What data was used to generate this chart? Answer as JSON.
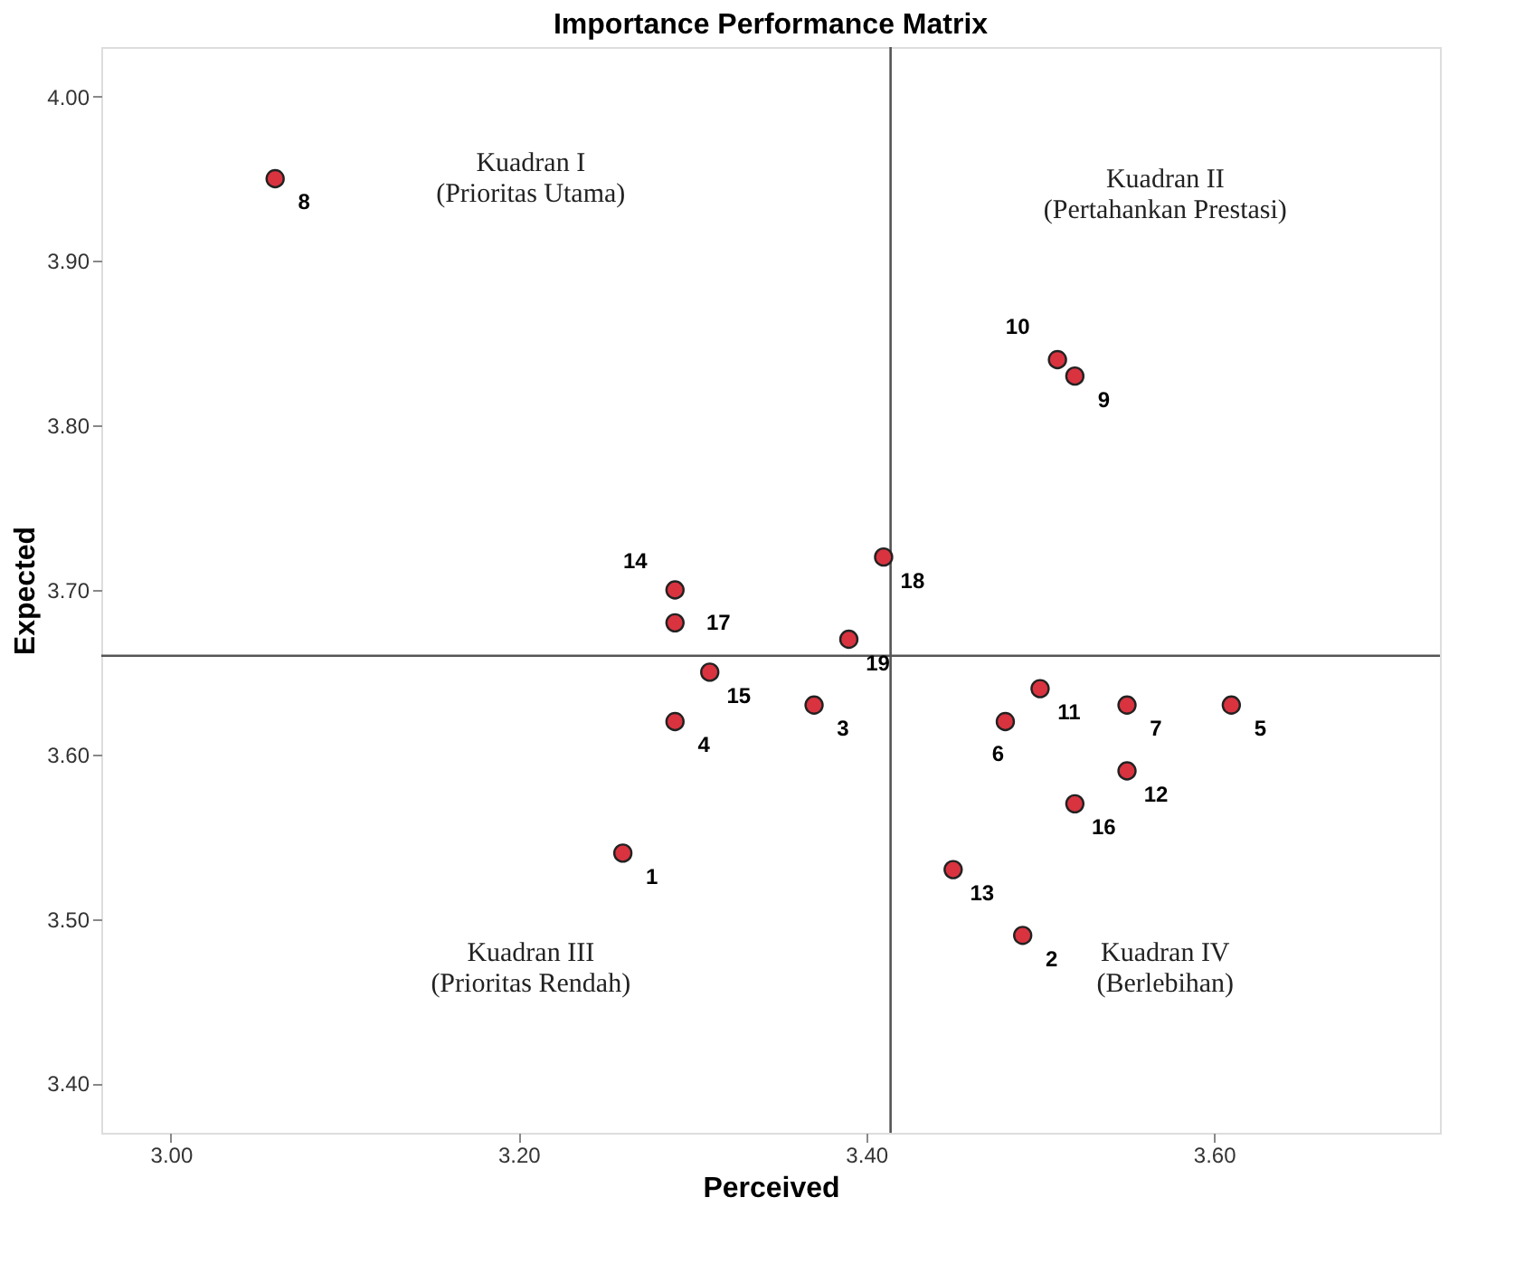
{
  "chart_data": {
    "type": "scatter",
    "title": "Importance Performance Matrix",
    "xlabel": "Perceived",
    "ylabel": "Expected",
    "x": [
      3.26,
      3.49,
      3.37,
      3.29,
      3.61,
      3.48,
      3.55,
      3.06,
      3.52,
      3.51,
      3.5,
      3.55,
      3.45,
      3.29,
      3.31,
      3.52,
      3.29,
      3.41,
      3.39
    ],
    "values": [
      3.54,
      3.49,
      3.63,
      3.62,
      3.63,
      3.62,
      3.63,
      3.95,
      3.83,
      3.84,
      3.64,
      3.59,
      3.53,
      3.7,
      3.65,
      3.57,
      3.68,
      3.72,
      3.67
    ],
    "color": "#d9333f",
    "marker": "circle",
    "grid": false,
    "xlim": [
      2.96,
      3.73
    ],
    "xticks": [
      {
        "value": 3.0,
        "label": "3.00"
      },
      {
        "value": 3.2,
        "label": "3.20"
      },
      {
        "value": 3.4,
        "label": "3.40"
      },
      {
        "value": 3.6,
        "label": "3.60"
      }
    ],
    "ylim": [
      3.37,
      4.03
    ],
    "yticks": [
      {
        "value": 3.4,
        "label": "3.40"
      },
      {
        "value": 3.5,
        "label": "3.50"
      },
      {
        "value": 3.6,
        "label": "3.60"
      },
      {
        "value": 3.7,
        "label": "3.70"
      },
      {
        "value": 3.8,
        "label": "3.80"
      },
      {
        "value": 3.9,
        "label": "3.90"
      },
      {
        "value": 4.0,
        "label": "4.00"
      }
    ],
    "ref_lines": [
      {
        "axis": "x",
        "value": 3.414,
        "color": "#555555"
      },
      {
        "axis": "y",
        "value": 3.66,
        "color": "#555555"
      }
    ],
    "annotations": [
      "Kuadran I\n(Prioritas Utama)",
      "Kuadran II\n(Pertahankan Prestasi)",
      "Kuadran III\n(Prioritas Rendah)",
      "Kuadran IV\n(Berlebihan)",
      {
        "text": "1",
        "x": 3.26,
        "y": 3.54
      },
      {
        "text": "2",
        "x": 3.49,
        "y": 3.49
      },
      {
        "text": "3",
        "x": 3.37,
        "y": 3.63
      },
      {
        "text": "4",
        "x": 3.29,
        "y": 3.62
      },
      {
        "text": "5",
        "x": 3.61,
        "y": 3.63
      },
      {
        "text": "6",
        "x": 3.48,
        "y": 3.62
      },
      {
        "text": "7",
        "x": 3.55,
        "y": 3.63
      },
      {
        "text": "8",
        "x": 3.06,
        "y": 3.95
      },
      {
        "text": "9",
        "x": 3.52,
        "y": 3.83
      },
      {
        "text": "10",
        "x": 3.51,
        "y": 3.84
      },
      {
        "text": "11",
        "x": 3.5,
        "y": 3.64
      },
      {
        "text": "12",
        "x": 3.55,
        "y": 3.59
      },
      {
        "text": "13",
        "x": 3.45,
        "y": 3.53
      },
      {
        "text": "14",
        "x": 3.29,
        "y": 3.7
      },
      {
        "text": "15",
        "x": 3.31,
        "y": 3.65
      },
      {
        "text": "16",
        "x": 3.52,
        "y": 3.57
      },
      {
        "text": "17",
        "x": 3.29,
        "y": 3.68
      },
      {
        "text": "18",
        "x": 3.41,
        "y": 3.72
      },
      {
        "text": "19",
        "x": 3.39,
        "y": 3.67
      }
    ]
  }
}
